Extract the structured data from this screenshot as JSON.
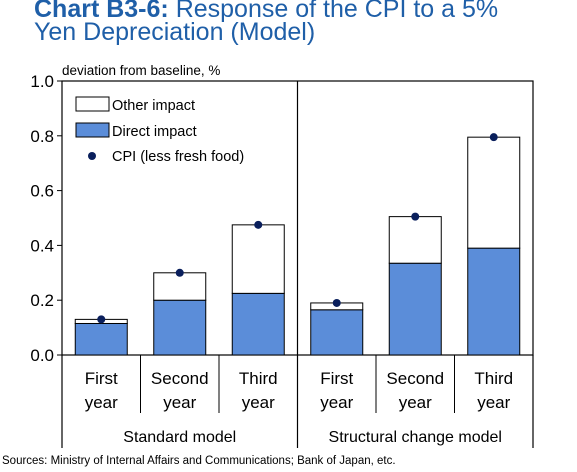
{
  "title_prefix": "Chart B3-6:",
  "title_line1": " Response of the CPI to a 5%",
  "title_line2": "Yen Depreciation (Model)",
  "sources": "Sources: Ministry of Internal Affairs and Communications; Bank of Japan, etc.",
  "colors": {
    "title": "#1f5fa8",
    "direct": "#5b8dd9",
    "other": "#ffffff",
    "cpi_dot": "#0a1f5c"
  },
  "chart_data": {
    "type": "bar",
    "stacked": true,
    "unit_label": "deviation from baseline, %",
    "ylim": [
      0,
      1.0
    ],
    "yticks": [
      "0.0",
      "0.2",
      "0.4",
      "0.6",
      "0.8",
      "1.0"
    ],
    "groups": [
      "Standard model",
      "Structural change model"
    ],
    "categories": [
      {
        "line1": "First",
        "line2": "year"
      },
      {
        "line1": "Second",
        "line2": "year"
      },
      {
        "line1": "Third",
        "line2": "year"
      },
      {
        "line1": "First",
        "line2": "year"
      },
      {
        "line1": "Second",
        "line2": "year"
      },
      {
        "line1": "Third",
        "line2": "year"
      }
    ],
    "series": [
      {
        "name": "Direct impact",
        "values": [
          0.115,
          0.2,
          0.225,
          0.165,
          0.335,
          0.39
        ]
      },
      {
        "name": "Other impact",
        "values": [
          0.015,
          0.1,
          0.25,
          0.025,
          0.17,
          0.405
        ]
      }
    ],
    "points": {
      "name": "CPI (less fresh food)",
      "values": [
        0.13,
        0.3,
        0.475,
        0.19,
        0.505,
        0.795
      ]
    },
    "legend": [
      "Other impact",
      "Direct impact",
      "CPI (less fresh food)"
    ],
    "legend_position": "top-left"
  }
}
